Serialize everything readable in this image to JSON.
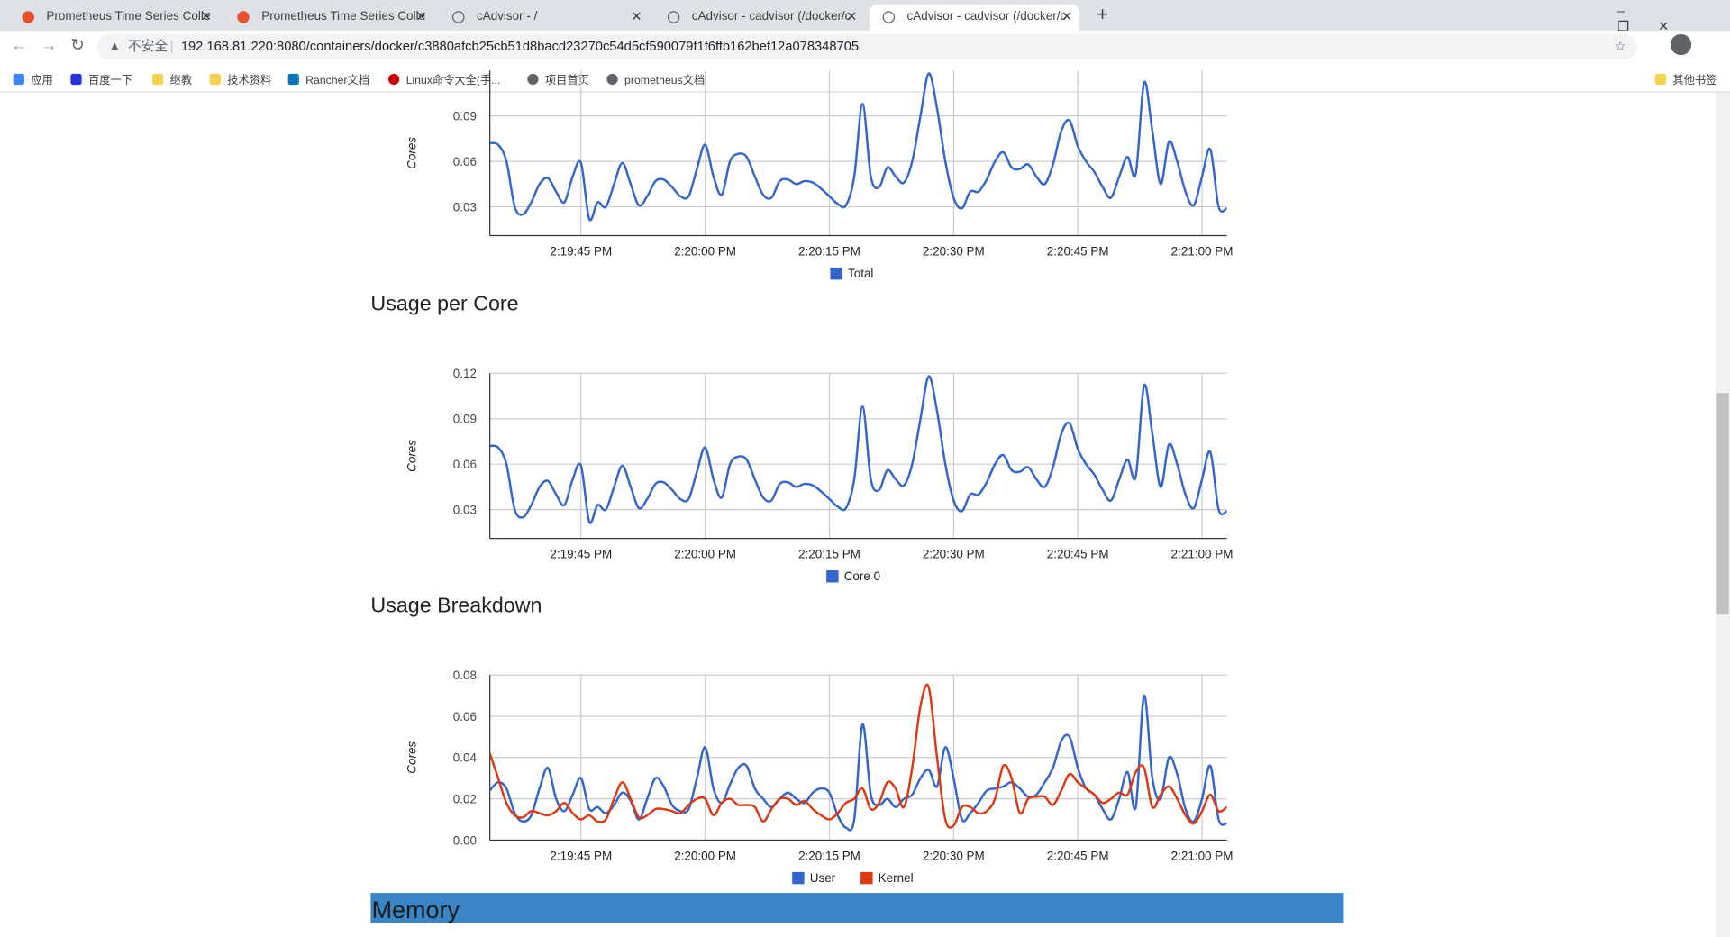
{
  "browser": {
    "tabs": [
      "Prometheus Time Series Colle",
      "Prometheus Time Series Colle",
      "cAdvisor - /",
      "cAdvisor - cadvisor (/docker/c",
      "cAdvisor - cadvisor (/docker/c"
    ],
    "security": "不安全",
    "address": "192.168.81.220:8080/containers/docker/c3880afcb25cb51d8bacd23270c54d5cf590079f1f6ffb162bef12a078348705",
    "bookmarks": [
      "应用",
      "百度一下",
      "继教",
      "技术资料",
      "Rancher文档",
      "Linux命令大全(手...",
      "项目首页",
      "prometheus文档"
    ],
    "other_bookmarks": "其他书签"
  },
  "section": {
    "heading": "Memory"
  },
  "chart_data": [
    {
      "type": "line",
      "ylabel": "Cores",
      "x": [
        "2:19:34 PM",
        "2:19:35 PM",
        "2:19:36 PM",
        "2:19:37 PM",
        "2:19:38 PM",
        "2:19:39 PM",
        "2:19:40 PM",
        "2:19:41 PM",
        "2:19:42 PM",
        "2:19:43 PM",
        "2:19:44 PM",
        "2:19:45 PM",
        "2:19:46 PM",
        "2:19:47 PM",
        "2:19:48 PM",
        "2:19:49 PM",
        "2:19:50 PM",
        "2:19:51 PM",
        "2:19:52 PM",
        "2:19:53 PM",
        "2:19:54 PM",
        "2:19:55 PM",
        "2:19:56 PM",
        "2:19:57 PM",
        "2:19:58 PM",
        "2:19:59 PM",
        "2:20:00 PM",
        "2:20:01 PM",
        "2:20:02 PM",
        "2:20:03 PM",
        "2:20:04 PM",
        "2:20:05 PM",
        "2:20:06 PM",
        "2:20:07 PM",
        "2:20:08 PM",
        "2:20:09 PM",
        "2:20:10 PM",
        "2:20:11 PM",
        "2:20:12 PM",
        "2:20:13 PM",
        "2:20:14 PM",
        "2:20:15 PM",
        "2:20:16 PM",
        "2:20:17 PM",
        "2:20:18 PM",
        "2:20:19 PM",
        "2:20:20 PM",
        "2:20:21 PM",
        "2:20:22 PM",
        "2:20:23 PM",
        "2:20:24 PM",
        "2:20:25 PM",
        "2:20:26 PM",
        "2:20:27 PM",
        "2:20:28 PM",
        "2:20:29 PM",
        "2:20:30 PM",
        "2:20:31 PM",
        "2:20:32 PM",
        "2:20:33 PM",
        "2:20:34 PM",
        "2:20:35 PM",
        "2:20:36 PM",
        "2:20:37 PM",
        "2:20:38 PM",
        "2:20:39 PM",
        "2:20:40 PM",
        "2:20:41 PM",
        "2:20:42 PM",
        "2:20:43 PM",
        "2:20:44 PM",
        "2:20:45 PM",
        "2:20:46 PM",
        "2:20:47 PM",
        "2:20:48 PM",
        "2:20:49 PM",
        "2:20:50 PM",
        "2:20:51 PM",
        "2:20:52 PM",
        "2:20:53 PM",
        "2:20:54 PM",
        "2:20:55 PM",
        "2:20:56 PM",
        "2:20:57 PM",
        "2:20:58 PM",
        "2:20:59 PM",
        "2:21:00 PM",
        "2:21:01 PM",
        "2:21:02 PM",
        "2:21:03 PM"
      ],
      "series": [
        {
          "name": "Total",
          "color": "#3366cc",
          "values": [
            0.072,
            0.071,
            0.06,
            0.03,
            0.025,
            0.033,
            0.045,
            0.049,
            0.04,
            0.033,
            0.05,
            0.059,
            0.022,
            0.033,
            0.03,
            0.045,
            0.059,
            0.045,
            0.031,
            0.037,
            0.047,
            0.048,
            0.043,
            0.037,
            0.037,
            0.055,
            0.071,
            0.05,
            0.038,
            0.06,
            0.065,
            0.063,
            0.05,
            0.038,
            0.036,
            0.047,
            0.048,
            0.045,
            0.047,
            0.046,
            0.042,
            0.037,
            0.032,
            0.031,
            0.05,
            0.098,
            0.05,
            0.043,
            0.056,
            0.05,
            0.046,
            0.06,
            0.09,
            0.118,
            0.095,
            0.06,
            0.036,
            0.029,
            0.04,
            0.04,
            0.048,
            0.06,
            0.066,
            0.056,
            0.055,
            0.058,
            0.05,
            0.045,
            0.058,
            0.08,
            0.087,
            0.07,
            0.06,
            0.053,
            0.043,
            0.036,
            0.05,
            0.063,
            0.052,
            0.112,
            0.08,
            0.045,
            0.073,
            0.06,
            0.04,
            0.031,
            0.05,
            0.068,
            0.03,
            0.029
          ]
        }
      ],
      "xlim": [
        "2:19:34 PM",
        "2:21:03 PM"
      ],
      "xticks": [
        "2:19:45 PM",
        "2:20:00 PM",
        "2:20:15 PM",
        "2:20:30 PM",
        "2:20:45 PM",
        "2:21:00 PM"
      ],
      "ylim": [
        0.011,
        0.12
      ],
      "yticks": [
        0.03,
        0.06,
        0.09
      ],
      "grid": true,
      "legend": "bottom"
    },
    {
      "type": "line",
      "title": "Usage per Core",
      "ylabel": "Cores",
      "x": [
        "2:19:34 PM",
        "2:19:35 PM",
        "2:19:36 PM",
        "2:19:37 PM",
        "2:19:38 PM",
        "2:19:39 PM",
        "2:19:40 PM",
        "2:19:41 PM",
        "2:19:42 PM",
        "2:19:43 PM",
        "2:19:44 PM",
        "2:19:45 PM",
        "2:19:46 PM",
        "2:19:47 PM",
        "2:19:48 PM",
        "2:19:49 PM",
        "2:19:50 PM",
        "2:19:51 PM",
        "2:19:52 PM",
        "2:19:53 PM",
        "2:19:54 PM",
        "2:19:55 PM",
        "2:19:56 PM",
        "2:19:57 PM",
        "2:19:58 PM",
        "2:19:59 PM",
        "2:20:00 PM",
        "2:20:01 PM",
        "2:20:02 PM",
        "2:20:03 PM",
        "2:20:04 PM",
        "2:20:05 PM",
        "2:20:06 PM",
        "2:20:07 PM",
        "2:20:08 PM",
        "2:20:09 PM",
        "2:20:10 PM",
        "2:20:11 PM",
        "2:20:12 PM",
        "2:20:13 PM",
        "2:20:14 PM",
        "2:20:15 PM",
        "2:20:16 PM",
        "2:20:17 PM",
        "2:20:18 PM",
        "2:20:19 PM",
        "2:20:20 PM",
        "2:20:21 PM",
        "2:20:22 PM",
        "2:20:23 PM",
        "2:20:24 PM",
        "2:20:25 PM",
        "2:20:26 PM",
        "2:20:27 PM",
        "2:20:28 PM",
        "2:20:29 PM",
        "2:20:30 PM",
        "2:20:31 PM",
        "2:20:32 PM",
        "2:20:33 PM",
        "2:20:34 PM",
        "2:20:35 PM",
        "2:20:36 PM",
        "2:20:37 PM",
        "2:20:38 PM",
        "2:20:39 PM",
        "2:20:40 PM",
        "2:20:41 PM",
        "2:20:42 PM",
        "2:20:43 PM",
        "2:20:44 PM",
        "2:20:45 PM",
        "2:20:46 PM",
        "2:20:47 PM",
        "2:20:48 PM",
        "2:20:49 PM",
        "2:20:50 PM",
        "2:20:51 PM",
        "2:20:52 PM",
        "2:20:53 PM",
        "2:20:54 PM",
        "2:20:55 PM",
        "2:20:56 PM",
        "2:20:57 PM",
        "2:20:58 PM",
        "2:20:59 PM",
        "2:21:00 PM",
        "2:21:01 PM",
        "2:21:02 PM",
        "2:21:03 PM"
      ],
      "series": [
        {
          "name": "Core 0",
          "color": "#3366cc",
          "values": [
            0.072,
            0.071,
            0.06,
            0.03,
            0.025,
            0.033,
            0.045,
            0.049,
            0.04,
            0.033,
            0.05,
            0.059,
            0.022,
            0.033,
            0.03,
            0.045,
            0.059,
            0.045,
            0.031,
            0.037,
            0.047,
            0.048,
            0.043,
            0.037,
            0.037,
            0.055,
            0.071,
            0.05,
            0.038,
            0.06,
            0.065,
            0.063,
            0.05,
            0.038,
            0.036,
            0.047,
            0.048,
            0.045,
            0.047,
            0.046,
            0.042,
            0.037,
            0.032,
            0.031,
            0.05,
            0.098,
            0.05,
            0.043,
            0.056,
            0.05,
            0.046,
            0.06,
            0.09,
            0.118,
            0.095,
            0.06,
            0.036,
            0.029,
            0.04,
            0.04,
            0.048,
            0.06,
            0.066,
            0.056,
            0.055,
            0.058,
            0.05,
            0.045,
            0.058,
            0.08,
            0.087,
            0.07,
            0.06,
            0.053,
            0.043,
            0.036,
            0.05,
            0.063,
            0.052,
            0.112,
            0.08,
            0.045,
            0.073,
            0.06,
            0.04,
            0.031,
            0.05,
            0.068,
            0.03,
            0.029
          ]
        }
      ],
      "xlim": [
        "2:19:34 PM",
        "2:21:03 PM"
      ],
      "xticks": [
        "2:19:45 PM",
        "2:20:00 PM",
        "2:20:15 PM",
        "2:20:30 PM",
        "2:20:45 PM",
        "2:21:00 PM"
      ],
      "ylim": [
        0.011,
        0.12
      ],
      "yticks": [
        0.03,
        0.06,
        0.09,
        0.12
      ],
      "grid": true,
      "legend": "bottom"
    },
    {
      "type": "line",
      "title": "Usage Breakdown",
      "ylabel": "Cores",
      "x": [
        "2:19:34 PM",
        "2:19:35 PM",
        "2:19:36 PM",
        "2:19:37 PM",
        "2:19:38 PM",
        "2:19:39 PM",
        "2:19:40 PM",
        "2:19:41 PM",
        "2:19:42 PM",
        "2:19:43 PM",
        "2:19:44 PM",
        "2:19:45 PM",
        "2:19:46 PM",
        "2:19:47 PM",
        "2:19:48 PM",
        "2:19:49 PM",
        "2:19:50 PM",
        "2:19:51 PM",
        "2:19:52 PM",
        "2:19:53 PM",
        "2:19:54 PM",
        "2:19:55 PM",
        "2:19:56 PM",
        "2:19:57 PM",
        "2:19:58 PM",
        "2:19:59 PM",
        "2:20:00 PM",
        "2:20:01 PM",
        "2:20:02 PM",
        "2:20:03 PM",
        "2:20:04 PM",
        "2:20:05 PM",
        "2:20:06 PM",
        "2:20:07 PM",
        "2:20:08 PM",
        "2:20:09 PM",
        "2:20:10 PM",
        "2:20:11 PM",
        "2:20:12 PM",
        "2:20:13 PM",
        "2:20:14 PM",
        "2:20:15 PM",
        "2:20:16 PM",
        "2:20:17 PM",
        "2:20:18 PM",
        "2:20:19 PM",
        "2:20:20 PM",
        "2:20:21 PM",
        "2:20:22 PM",
        "2:20:23 PM",
        "2:20:24 PM",
        "2:20:25 PM",
        "2:20:26 PM",
        "2:20:27 PM",
        "2:20:28 PM",
        "2:20:29 PM",
        "2:20:30 PM",
        "2:20:31 PM",
        "2:20:32 PM",
        "2:20:33 PM",
        "2:20:34 PM",
        "2:20:35 PM",
        "2:20:36 PM",
        "2:20:37 PM",
        "2:20:38 PM",
        "2:20:39 PM",
        "2:20:40 PM",
        "2:20:41 PM",
        "2:20:42 PM",
        "2:20:43 PM",
        "2:20:44 PM",
        "2:20:45 PM",
        "2:20:46 PM",
        "2:20:47 PM",
        "2:20:48 PM",
        "2:20:49 PM",
        "2:20:50 PM",
        "2:20:51 PM",
        "2:20:52 PM",
        "2:20:53 PM",
        "2:20:54 PM",
        "2:20:55 PM",
        "2:20:56 PM",
        "2:20:57 PM",
        "2:20:58 PM",
        "2:20:59 PM",
        "2:21:00 PM",
        "2:21:01 PM",
        "2:21:02 PM",
        "2:21:03 PM"
      ],
      "series": [
        {
          "name": "User",
          "color": "#3366cc",
          "values": [
            0.024,
            0.028,
            0.025,
            0.013,
            0.009,
            0.012,
            0.025,
            0.035,
            0.02,
            0.014,
            0.022,
            0.03,
            0.015,
            0.016,
            0.013,
            0.017,
            0.023,
            0.019,
            0.01,
            0.02,
            0.03,
            0.026,
            0.017,
            0.014,
            0.015,
            0.03,
            0.045,
            0.025,
            0.018,
            0.027,
            0.035,
            0.036,
            0.025,
            0.02,
            0.016,
            0.02,
            0.023,
            0.02,
            0.018,
            0.023,
            0.025,
            0.023,
            0.012,
            0.006,
            0.01,
            0.056,
            0.022,
            0.017,
            0.02,
            0.016,
            0.02,
            0.022,
            0.03,
            0.034,
            0.026,
            0.045,
            0.03,
            0.01,
            0.013,
            0.018,
            0.024,
            0.025,
            0.026,
            0.028,
            0.025,
            0.021,
            0.022,
            0.028,
            0.035,
            0.048,
            0.05,
            0.035,
            0.025,
            0.022,
            0.015,
            0.01,
            0.02,
            0.033,
            0.016,
            0.07,
            0.03,
            0.02,
            0.04,
            0.032,
            0.015,
            0.009,
            0.02,
            0.036,
            0.01,
            0.008
          ]
        },
        {
          "name": "Kernel",
          "color": "#dc3912",
          "values": [
            0.042,
            0.03,
            0.018,
            0.012,
            0.011,
            0.014,
            0.013,
            0.012,
            0.014,
            0.018,
            0.013,
            0.01,
            0.012,
            0.009,
            0.01,
            0.02,
            0.028,
            0.02,
            0.011,
            0.012,
            0.015,
            0.015,
            0.014,
            0.013,
            0.017,
            0.02,
            0.02,
            0.012,
            0.018,
            0.02,
            0.017,
            0.017,
            0.016,
            0.009,
            0.015,
            0.02,
            0.02,
            0.017,
            0.019,
            0.015,
            0.012,
            0.01,
            0.013,
            0.018,
            0.02,
            0.025,
            0.015,
            0.018,
            0.028,
            0.025,
            0.016,
            0.035,
            0.065,
            0.074,
            0.04,
            0.01,
            0.007,
            0.016,
            0.016,
            0.013,
            0.014,
            0.02,
            0.036,
            0.03,
            0.013,
            0.02,
            0.021,
            0.021,
            0.017,
            0.024,
            0.032,
            0.028,
            0.025,
            0.022,
            0.018,
            0.02,
            0.023,
            0.022,
            0.033,
            0.035,
            0.016,
            0.022,
            0.026,
            0.02,
            0.012,
            0.008,
            0.014,
            0.022,
            0.014,
            0.016
          ]
        }
      ],
      "xlim": [
        "2:19:34 PM",
        "2:21:03 PM"
      ],
      "xticks": [
        "2:19:45 PM",
        "2:20:00 PM",
        "2:20:15 PM",
        "2:20:30 PM",
        "2:20:45 PM",
        "2:21:00 PM"
      ],
      "ylim": [
        0,
        0.08
      ],
      "yticks": [
        0.0,
        0.02,
        0.04,
        0.06,
        0.08
      ],
      "grid": true,
      "legend": "bottom"
    }
  ]
}
